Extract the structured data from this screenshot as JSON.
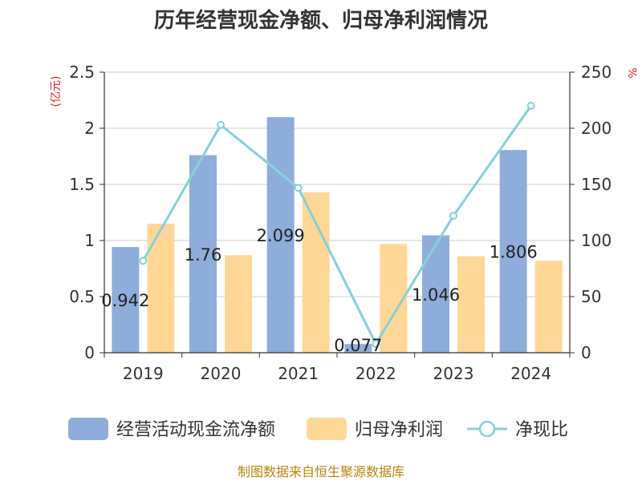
{
  "chart_data": {
    "type": "bar",
    "title": "历年经营现金净额、归母净利润情况",
    "categories": [
      "2019",
      "2020",
      "2021",
      "2022",
      "2023",
      "2024"
    ],
    "series": [
      {
        "name": "经营活动现金流净额",
        "type": "bar",
        "axis": "left",
        "color": "#8eadda",
        "values": [
          0.942,
          1.76,
          2.099,
          0.077,
          1.046,
          1.806
        ],
        "labels": [
          "0.942",
          "1.76",
          "2.099",
          "0.077",
          "1.046",
          "1.806"
        ]
      },
      {
        "name": "归母净利润",
        "type": "bar",
        "axis": "left",
        "color": "#fed797",
        "values": [
          1.15,
          0.87,
          1.43,
          0.97,
          0.86,
          0.82
        ]
      },
      {
        "name": "净现比",
        "type": "line",
        "axis": "right",
        "color": "#85d1d8",
        "values": [
          82,
          203,
          147,
          8,
          122,
          220
        ]
      }
    ],
    "y_left": {
      "unit": "(亿元)",
      "min": 0,
      "max": 2.5,
      "ticks": [
        "0",
        "0.5",
        "1",
        "1.5",
        "2",
        "2.5"
      ]
    },
    "y_right": {
      "unit": "%",
      "min": 0,
      "max": 250,
      "ticks": [
        "0",
        "50",
        "100",
        "150",
        "200",
        "250"
      ]
    },
    "grid": true,
    "legend_position": "bottom"
  },
  "source": "制图数据来自恒生聚源数据库"
}
